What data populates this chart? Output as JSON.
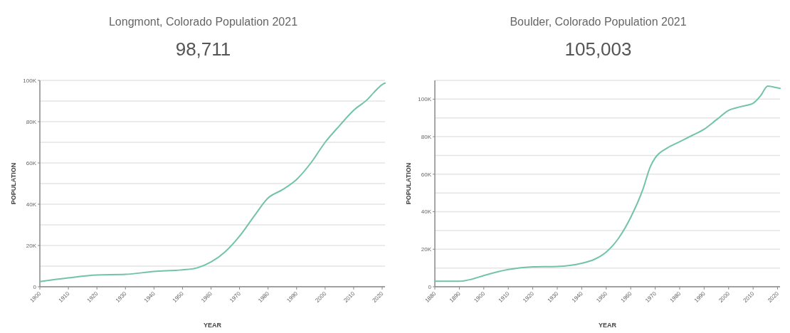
{
  "chart_data": [
    {
      "type": "line",
      "title": "Longmont, Colorado Population 2021",
      "subtitle": "98,711",
      "xlabel": "YEAR",
      "ylabel": "POPULATION",
      "grid": "y",
      "xlim": [
        1900,
        2021
      ],
      "xticks": [
        1900,
        1910,
        1920,
        1930,
        1940,
        1950,
        1960,
        1970,
        1980,
        1990,
        2000,
        2010,
        2020
      ],
      "ylim": [
        0,
        100000
      ],
      "yticks": [
        {
          "value": 0,
          "label": "0"
        },
        {
          "value": 10000,
          "label": null
        },
        {
          "value": 20000,
          "label": "20K"
        },
        {
          "value": 30000,
          "label": null
        },
        {
          "value": 40000,
          "label": "40K"
        },
        {
          "value": 50000,
          "label": null
        },
        {
          "value": 60000,
          "label": "60K"
        },
        {
          "value": 70000,
          "label": null
        },
        {
          "value": 80000,
          "label": "80K"
        },
        {
          "value": 90000,
          "label": null
        },
        {
          "value": 100000,
          "label": "100K"
        }
      ],
      "series": [
        {
          "color": "#72c3a9",
          "x": [
            1900,
            1910,
            1920,
            1930,
            1940,
            1950,
            1955,
            1960,
            1965,
            1970,
            1975,
            1980,
            1985,
            1990,
            1995,
            2000,
            2005,
            2010,
            2015,
            2017,
            2020,
            2021
          ],
          "values": [
            2500,
            4300,
            5700,
            6000,
            7400,
            8200,
            9100,
            12000,
            17000,
            24500,
            34000,
            43000,
            47000,
            52000,
            60000,
            70000,
            78000,
            85500,
            91000,
            94000,
            98000,
            98700
          ]
        }
      ]
    },
    {
      "type": "line",
      "title": "Boulder, Colorado Population 2021",
      "subtitle": "105,003",
      "xlabel": "YEAR",
      "ylabel": "POPULATION",
      "grid": "y",
      "xlim": [
        1880,
        2021
      ],
      "xticks": [
        1880,
        1890,
        1900,
        1910,
        1920,
        1930,
        1940,
        1950,
        1960,
        1970,
        1980,
        1990,
        2000,
        2010,
        2020
      ],
      "ylim": [
        0,
        110000
      ],
      "yticks": [
        {
          "value": 0,
          "label": "0"
        },
        {
          "value": 10000,
          "label": null
        },
        {
          "value": 20000,
          "label": "20K"
        },
        {
          "value": 30000,
          "label": null
        },
        {
          "value": 40000,
          "label": "40K"
        },
        {
          "value": 50000,
          "label": null
        },
        {
          "value": 60000,
          "label": "60K"
        },
        {
          "value": 70000,
          "label": null
        },
        {
          "value": 80000,
          "label": "80K"
        },
        {
          "value": 90000,
          "label": null
        },
        {
          "value": 100000,
          "label": "100K"
        },
        {
          "value": 110000,
          "label": null
        }
      ],
      "series": [
        {
          "color": "#72c3a9",
          "x": [
            1880,
            1890,
            1895,
            1900,
            1910,
            1920,
            1930,
            1940,
            1945,
            1950,
            1955,
            1960,
            1965,
            1968,
            1970,
            1975,
            1980,
            1985,
            1990,
            1995,
            2000,
            2005,
            2010,
            2013,
            2016,
            2018,
            2021
          ],
          "values": [
            2900,
            2900,
            4000,
            6000,
            9200,
            10600,
            10800,
            12500,
            14500,
            18500,
            25800,
            37000,
            52000,
            64000,
            68700,
            74000,
            77300,
            80600,
            84000,
            89000,
            94000,
            96000,
            97800,
            101700,
            107000,
            106600,
            105700
          ]
        }
      ]
    }
  ]
}
